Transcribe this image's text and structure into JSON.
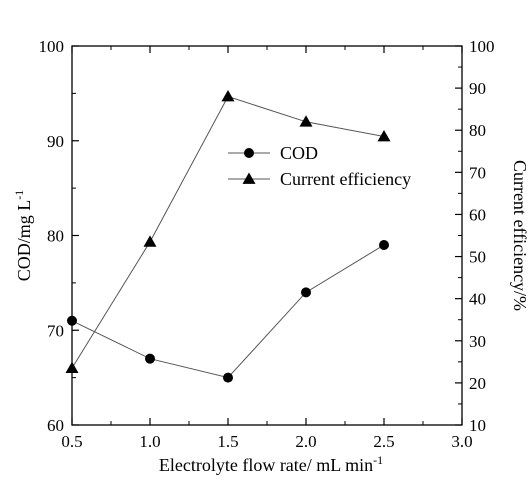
{
  "chart_data": {
    "type": "line",
    "x": [
      0.5,
      1.0,
      1.5,
      2.0,
      2.5
    ],
    "x_tick_labels": [
      "0.5",
      "1.0",
      "1.5",
      "2.0",
      "2.5",
      "3.0"
    ],
    "xlim": [
      0.5,
      3.0
    ],
    "xlabel_main": "Electrolyte flow rate/ mL min",
    "xlabel_sup": "-1",
    "ylabel_left_main": "COD/mg L",
    "ylabel_left_sup": "-1",
    "ylim_left": [
      60,
      100
    ],
    "y_left_tick_labels": [
      "60",
      "70",
      "80",
      "90",
      "100"
    ],
    "ylabel_right": "Current efficiency/%",
    "ylim_right": [
      10,
      100
    ],
    "y_right_tick_labels": [
      "10",
      "20",
      "30",
      "40",
      "50",
      "60",
      "70",
      "80",
      "90",
      "100"
    ],
    "series": [
      {
        "name": "COD",
        "axis": "left",
        "marker": "circle",
        "values": [
          71,
          67,
          65,
          74,
          79
        ]
      },
      {
        "name": "Current efficiency",
        "axis": "right",
        "marker": "triangle",
        "values": [
          23.5,
          53.5,
          88,
          82,
          78.5
        ]
      }
    ],
    "legend_position": "upper-middle",
    "grid": false,
    "colors": {
      "line": "#555555",
      "marker": "#000000",
      "axis": "#000000"
    }
  }
}
